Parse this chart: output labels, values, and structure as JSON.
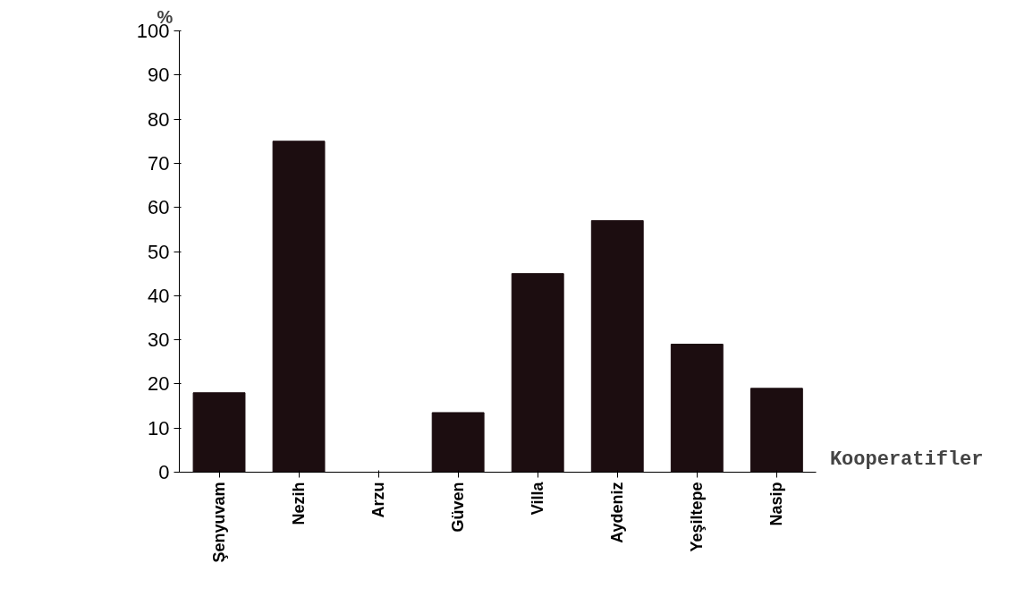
{
  "chart_data": {
    "type": "bar",
    "ylabel": "%",
    "xlabel": "Kooperatifler",
    "categories": [
      "Şenyuvam",
      "Nezih",
      "Arzu",
      "Güven",
      "Villa",
      "Aydeniz",
      "Yeşiltepe",
      "Nasip"
    ],
    "values": [
      18,
      75,
      0,
      13.5,
      45,
      57,
      29,
      19
    ],
    "color": "#1c0d10",
    "ylim": [
      0,
      100
    ],
    "yticks": [
      0,
      10,
      20,
      30,
      40,
      50,
      60,
      70,
      80,
      90,
      100
    ],
    "grid": false
  }
}
